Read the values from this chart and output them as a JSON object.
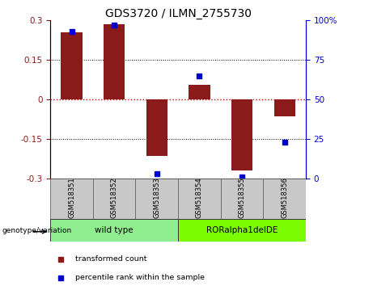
{
  "title": "GDS3720 / ILMN_2755730",
  "samples": [
    "GSM518351",
    "GSM518352",
    "GSM518353",
    "GSM518354",
    "GSM518355",
    "GSM518356"
  ],
  "bar_values": [
    0.255,
    0.285,
    -0.215,
    0.055,
    -0.27,
    -0.065
  ],
  "percentile_values": [
    93,
    97,
    3,
    65,
    1,
    23
  ],
  "ylim_left": [
    -0.3,
    0.3
  ],
  "ylim_right": [
    0,
    100
  ],
  "yticks_left": [
    -0.3,
    -0.15,
    0,
    0.15,
    0.3
  ],
  "yticks_right": [
    0,
    25,
    50,
    75,
    100
  ],
  "bar_color": "#8B1A1A",
  "dot_color": "#0000CD",
  "zero_line_color": "#CC0000",
  "grid_color": "#000000",
  "groups": [
    {
      "label": "wild type",
      "indices": [
        0,
        1,
        2
      ],
      "color": "#90EE90"
    },
    {
      "label": "RORalpha1delDE",
      "indices": [
        3,
        4,
        5
      ],
      "color": "#7CFC00"
    }
  ],
  "legend_items": [
    {
      "label": "transformed count",
      "color": "#8B1A1A"
    },
    {
      "label": "percentile rank within the sample",
      "color": "#0000CD"
    }
  ],
  "genotype_label": "genotype/variation",
  "title_fontsize": 10,
  "tick_fontsize": 7.5,
  "label_fontsize": 7.5
}
